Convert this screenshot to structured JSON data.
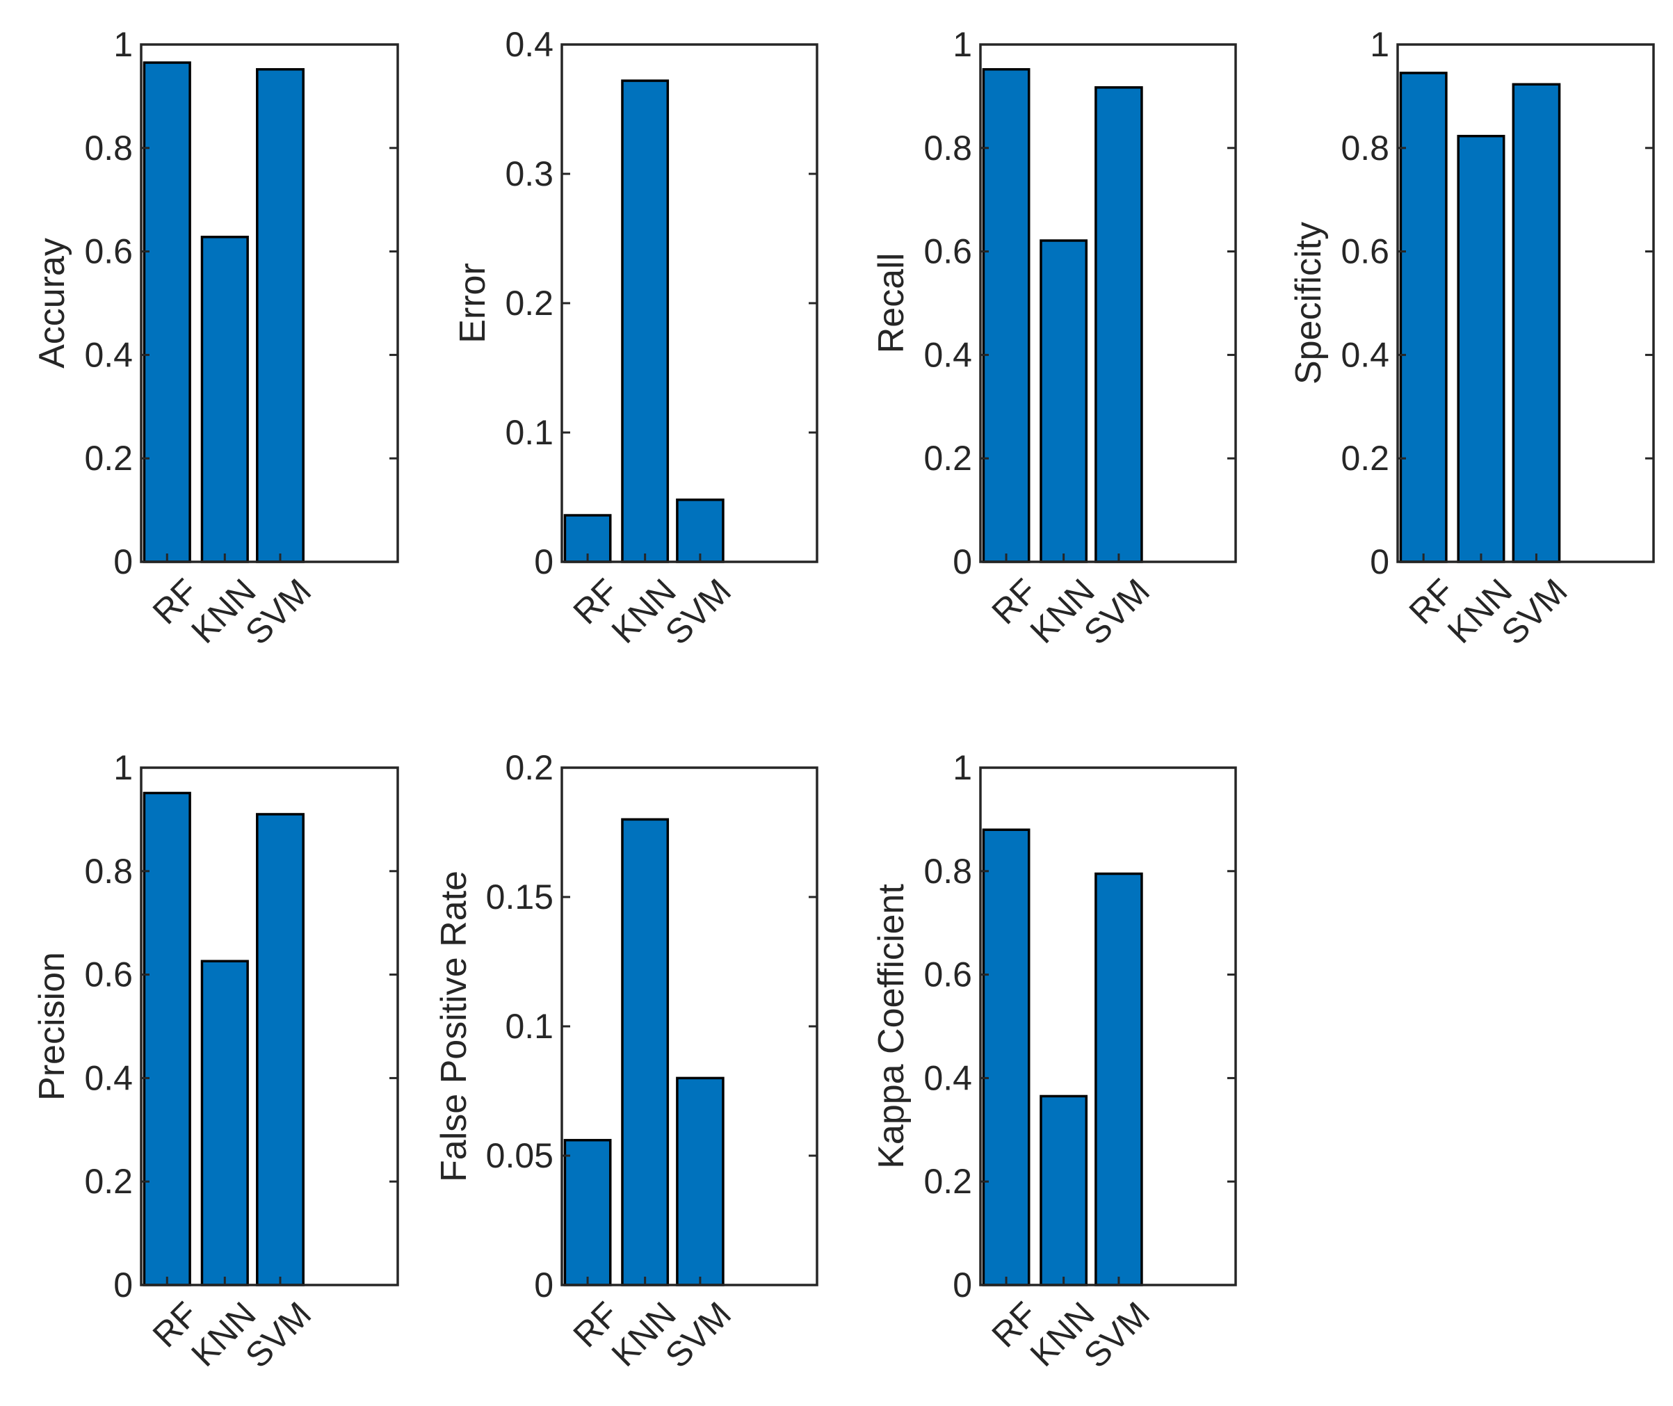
{
  "colors": {
    "bar": "#0072bd",
    "axis": "#262626",
    "background": "#ffffff"
  },
  "chart_data": [
    {
      "type": "bar",
      "ylabel": "Accuray",
      "categories": [
        "RF",
        "KNN",
        "SVM"
      ],
      "values": [
        0.965,
        0.628,
        0.952
      ],
      "ylim": [
        0,
        1
      ],
      "yticks": [
        "0",
        "0.2",
        "0.4",
        "0.6",
        "0.8",
        "1"
      ],
      "grid": false
    },
    {
      "type": "bar",
      "ylabel": "Error",
      "categories": [
        "RF",
        "KNN",
        "SVM"
      ],
      "values": [
        0.036,
        0.372,
        0.048
      ],
      "ylim": [
        0,
        0.4
      ],
      "yticks": [
        "0",
        "0.1",
        "0.2",
        "0.3",
        "0.4"
      ],
      "grid": false
    },
    {
      "type": "bar",
      "ylabel": "Recall",
      "categories": [
        "RF",
        "KNN",
        "SVM"
      ],
      "values": [
        0.952,
        0.621,
        0.917
      ],
      "ylim": [
        0,
        1
      ],
      "yticks": [
        "0",
        "0.2",
        "0.4",
        "0.6",
        "0.8",
        "1"
      ],
      "grid": false
    },
    {
      "type": "bar",
      "ylabel": "Specificity",
      "categories": [
        "RF",
        "KNN",
        "SVM"
      ],
      "values": [
        0.945,
        0.823,
        0.923
      ],
      "ylim": [
        0,
        1
      ],
      "yticks": [
        "0",
        "0.2",
        "0.4",
        "0.6",
        "0.8",
        "1"
      ],
      "grid": false
    },
    {
      "type": "bar",
      "ylabel": "Precision",
      "categories": [
        "RF",
        "KNN",
        "SVM"
      ],
      "values": [
        0.951,
        0.626,
        0.91
      ],
      "ylim": [
        0,
        1
      ],
      "yticks": [
        "0",
        "0.2",
        "0.4",
        "0.6",
        "0.8",
        "1"
      ],
      "grid": false
    },
    {
      "type": "bar",
      "ylabel": "False Positive Rate",
      "categories": [
        "RF",
        "KNN",
        "SVM"
      ],
      "values": [
        0.056,
        0.18,
        0.08
      ],
      "ylim": [
        0,
        0.2
      ],
      "yticks": [
        "0",
        "0.05",
        "0.1",
        "0.15",
        "0.2"
      ],
      "grid": false
    },
    {
      "type": "bar",
      "ylabel": "Kappa Coefficient",
      "categories": [
        "RF",
        "KNN",
        "SVM"
      ],
      "values": [
        0.88,
        0.365,
        0.795
      ],
      "ylim": [
        0,
        1
      ],
      "yticks": [
        "0",
        "0.2",
        "0.4",
        "0.6",
        "0.8",
        "1"
      ],
      "grid": false
    }
  ]
}
